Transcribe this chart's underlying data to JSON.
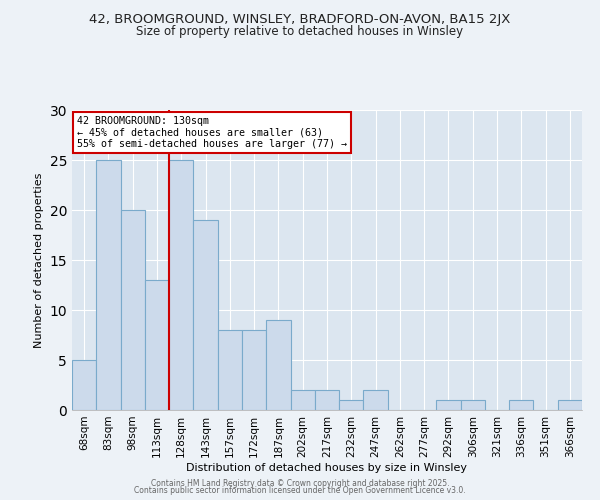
{
  "title_line1": "42, BROOMGROUND, WINSLEY, BRADFORD-ON-AVON, BA15 2JX",
  "title_line2": "Size of property relative to detached houses in Winsley",
  "xlabel": "Distribution of detached houses by size in Winsley",
  "ylabel": "Number of detached properties",
  "categories": [
    "68sqm",
    "83sqm",
    "98sqm",
    "113sqm",
    "128sqm",
    "143sqm",
    "157sqm",
    "172sqm",
    "187sqm",
    "202sqm",
    "217sqm",
    "232sqm",
    "247sqm",
    "262sqm",
    "277sqm",
    "292sqm",
    "306sqm",
    "321sqm",
    "336sqm",
    "351sqm",
    "366sqm"
  ],
  "values": [
    5,
    25,
    20,
    13,
    25,
    19,
    8,
    8,
    9,
    2,
    2,
    1,
    2,
    0,
    0,
    1,
    1,
    0,
    1,
    0,
    1
  ],
  "bar_color": "#ccdaeb",
  "bar_edge_color": "#7aaacb",
  "red_line_index": 4,
  "red_line_color": "#cc0000",
  "annotation_text": "42 BROOMGROUND: 130sqm\n← 45% of detached houses are smaller (63)\n55% of semi-detached houses are larger (77) →",
  "annotation_box_color": "#ffffff",
  "annotation_box_edge_color": "#cc0000",
  "ylim": [
    0,
    30
  ],
  "yticks": [
    0,
    5,
    10,
    15,
    20,
    25,
    30
  ],
  "bg_color": "#dce6f0",
  "fig_bg_color": "#edf2f7",
  "footer_line1": "Contains HM Land Registry data © Crown copyright and database right 2025.",
  "footer_line2": "Contains public sector information licensed under the Open Government Licence v3.0."
}
